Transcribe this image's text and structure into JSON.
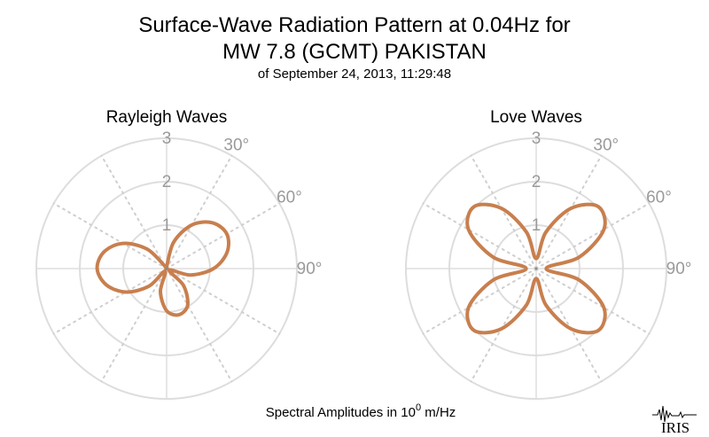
{
  "title": {
    "line1": "Surface-Wave Radiation Pattern at 0.04Hz for",
    "line2": "MW 7.8 (GCMT) PAKISTAN",
    "subtitle": "of September 24, 2013, 11:29:48"
  },
  "footer": {
    "prefix": "Spectral Amplitudes in 10",
    "exponent": "0",
    "suffix": " m/Hz"
  },
  "logo": {
    "text": "IRIS"
  },
  "colors": {
    "curve": "#c87f4e",
    "grid_solid": "#dddddd",
    "grid_dotted": "#cfcfcf",
    "tick_text": "#9a9a9a",
    "center_dot": "#888888"
  },
  "chart_data": [
    {
      "type": "polar",
      "name": "rayleigh",
      "title": "Rayleigh Waves",
      "radial_ticks": [
        1,
        2,
        3
      ],
      "radial_tick_labels": [
        "1",
        "2",
        "3"
      ],
      "r_max": 3,
      "angle_ticks": [
        30,
        60,
        90
      ],
      "angle_tick_labels": [
        "30°",
        "60°",
        "90°"
      ],
      "grid_angles_deg": [
        0,
        30,
        60,
        90,
        120,
        150,
        180,
        210,
        240,
        270,
        300,
        330
      ],
      "azimuth_deg": [
        0,
        15,
        30,
        45,
        60,
        75,
        90,
        105,
        120,
        135,
        150,
        165,
        180,
        195,
        210,
        225,
        240,
        255,
        270,
        285,
        300,
        315,
        330,
        345
      ],
      "amplitude": [
        0.04,
        0.63,
        1.16,
        1.49,
        1.6,
        1.44,
        1.08,
        0.57,
        0.07,
        0.55,
        0.97,
        1.1,
        0.97,
        0.55,
        0.07,
        0.57,
        1.08,
        1.44,
        1.6,
        1.49,
        1.16,
        0.63,
        0.04,
        0.04
      ]
    },
    {
      "type": "polar",
      "name": "love",
      "title": "Love Waves",
      "radial_ticks": [
        1,
        2,
        3
      ],
      "radial_tick_labels": [
        "1",
        "2",
        "3"
      ],
      "r_max": 3,
      "angle_ticks": [
        30,
        60,
        90
      ],
      "angle_tick_labels": [
        "30°",
        "60°",
        "90°"
      ],
      "grid_angles_deg": [
        0,
        30,
        60,
        90,
        120,
        150,
        180,
        210,
        240,
        270,
        300,
        330
      ],
      "azimuth_deg": [
        0,
        15,
        30,
        45,
        60,
        75,
        90,
        105,
        120,
        135,
        150,
        165,
        180,
        195,
        210,
        225,
        240,
        255,
        270,
        285,
        300,
        315,
        330,
        345
      ],
      "amplitude": [
        0.23,
        0.87,
        1.6,
        2.02,
        1.8,
        1.03,
        0.23,
        1.03,
        1.8,
        2.02,
        1.6,
        0.87,
        0.23,
        0.87,
        1.6,
        2.02,
        1.8,
        1.03,
        0.23,
        1.03,
        1.8,
        2.02,
        1.6,
        0.87
      ]
    }
  ]
}
